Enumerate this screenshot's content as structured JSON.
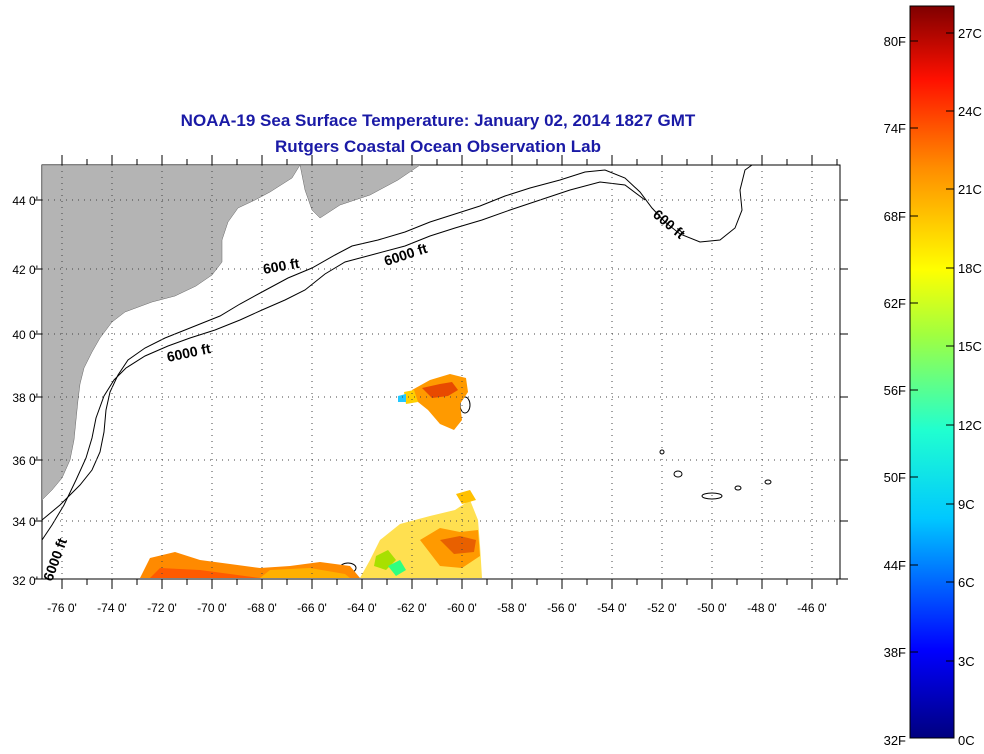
{
  "title": "NOAA-19 Sea Surface Temperature:  January 02, 2014 1827 GMT",
  "subtitle": "Rutgers Coastal Ocean Observation Lab",
  "map": {
    "lon_range": [
      -77,
      -45
    ],
    "lat_range": [
      32,
      45
    ],
    "grid": true,
    "lon_ticks": [
      "-76 0'",
      "-74 0'",
      "-72 0'",
      "-70 0'",
      "-68 0'",
      "-66 0'",
      "-64 0'",
      "-62 0'",
      "-60 0'",
      "-58 0'",
      "-56 0'",
      "-54 0'",
      "-52 0'",
      "-50 0'",
      "-48 0'",
      "-46 0'"
    ],
    "lat_ticks": [
      "44 0'",
      "42 0'",
      "40 0'",
      "38 0'",
      "36 0'",
      "34 0'",
      "32 0'"
    ],
    "contour_labels": [
      {
        "text": "600 ft"
      },
      {
        "text": "6000 ft"
      },
      {
        "text": "6000 ft"
      },
      {
        "text": "600 ft"
      },
      {
        "text": "6000 ft"
      }
    ],
    "land_color": "#b4b4b4"
  },
  "colorbar": {
    "f_labels": [
      "80F",
      "74F",
      "68F",
      "62F",
      "56F",
      "50F",
      "44F",
      "38F",
      "32F"
    ],
    "c_labels": [
      "27C",
      "24C",
      "21C",
      "18C",
      "15C",
      "12C",
      "9C",
      "6C",
      "3C",
      "0C"
    ]
  }
}
